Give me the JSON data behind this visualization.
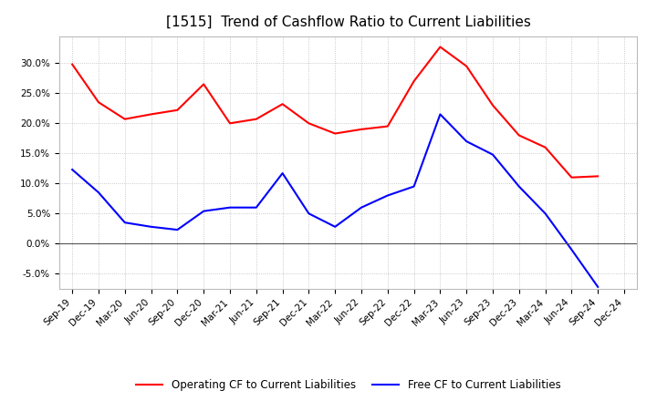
{
  "title": "[1515]  Trend of Cashflow Ratio to Current Liabilities",
  "x_labels": [
    "Sep-19",
    "Dec-19",
    "Mar-20",
    "Jun-20",
    "Sep-20",
    "Dec-20",
    "Mar-21",
    "Jun-21",
    "Sep-21",
    "Dec-21",
    "Mar-22",
    "Jun-22",
    "Sep-22",
    "Dec-22",
    "Mar-23",
    "Jun-23",
    "Sep-23",
    "Dec-23",
    "Mar-24",
    "Jun-24",
    "Sep-24",
    "Dec-24"
  ],
  "operating_cf": [
    0.298,
    0.235,
    0.207,
    0.215,
    0.222,
    0.265,
    0.2,
    0.207,
    0.232,
    0.2,
    0.183,
    0.19,
    0.195,
    0.27,
    0.327,
    0.295,
    0.23,
    0.18,
    0.16,
    0.11,
    0.112,
    null
  ],
  "free_cf": [
    0.123,
    0.085,
    0.035,
    0.028,
    0.023,
    0.054,
    0.06,
    0.06,
    0.117,
    0.05,
    0.028,
    0.06,
    0.08,
    0.095,
    0.215,
    0.17,
    0.148,
    0.095,
    0.05,
    -0.01,
    -0.072,
    null
  ],
  "operating_color": "#ff0000",
  "free_color": "#0000ff",
  "ylim": [
    -0.075,
    0.345
  ],
  "yticks": [
    -0.05,
    0.0,
    0.05,
    0.1,
    0.15,
    0.2,
    0.25,
    0.3
  ],
  "background_color": "#ffffff",
  "grid_color": "#aaaaaa",
  "title_fontsize": 11,
  "tick_fontsize": 7.5,
  "legend_fontsize": 8.5
}
